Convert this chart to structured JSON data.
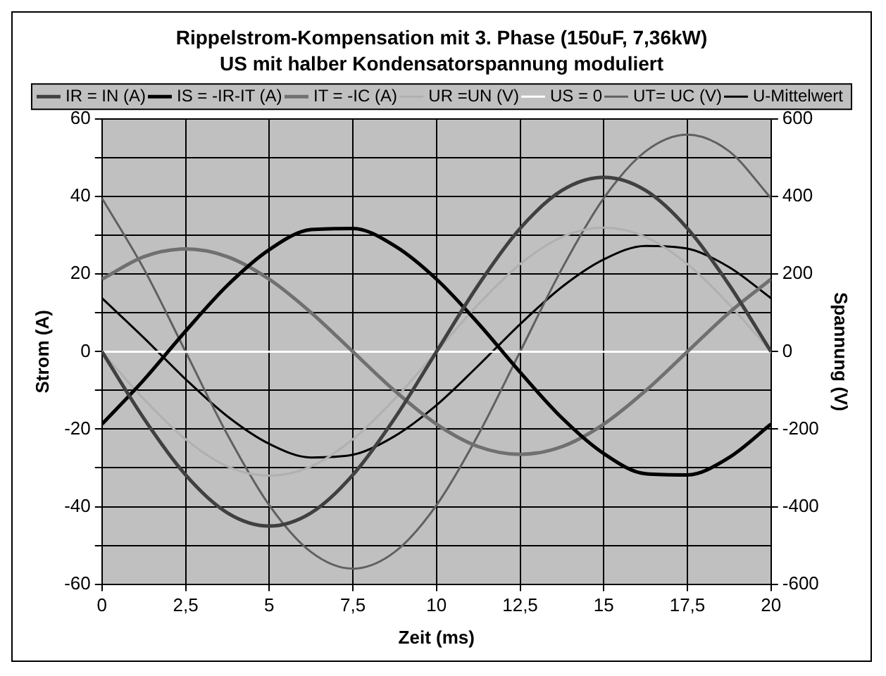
{
  "chart_data": {
    "type": "line",
    "title": "Rippelstrom-Kompensation mit 3. Phase (150uF, 7,36kW)",
    "subtitle": "US mit halber Kondensatorspannung moduliert",
    "xlabel": "Zeit (ms)",
    "ylabel": "Strom (A)",
    "y2label": "Spannung (V)",
    "x": [
      0,
      1.25,
      2.5,
      3.75,
      5,
      6.25,
      7.5,
      8.75,
      10,
      11.25,
      12.5,
      13.75,
      15,
      16.25,
      17.5,
      18.75,
      20
    ],
    "series": [
      {
        "name": "IR = IN (A)",
        "color": "#404040",
        "values": [
          0,
          -17.2,
          -31.8,
          -41.6,
          -45,
          -41.6,
          -31.8,
          -17.2,
          0,
          17.2,
          31.8,
          41.6,
          45,
          41.6,
          31.8,
          17.2,
          0
        ]
      },
      {
        "name": "IS = -IR-IT (A)",
        "color": "#000000",
        "values": [
          -18.7,
          -7.3,
          5.3,
          17.1,
          26.3,
          31.5,
          31.8,
          27.3,
          18.7,
          7.3,
          -5.3,
          -17.1,
          -26.3,
          -31.5,
          -31.8,
          -27.3,
          -18.7
        ]
      },
      {
        "name": "IT = -IC (A)",
        "color": "#707070",
        "values": [
          18.7,
          24.5,
          26.5,
          24.5,
          18.7,
          10.1,
          0,
          -10.1,
          -18.7,
          -24.5,
          -26.5,
          -24.5,
          -18.7,
          -10.1,
          0,
          10.1,
          18.7
        ]
      },
      {
        "name": "UR =UN (V)",
        "color": "#b0b0b0",
        "axis": "y2",
        "values": [
          0,
          -122,
          -226,
          -296,
          -320,
          -296,
          -226,
          -122,
          0,
          122,
          226,
          296,
          320,
          296,
          226,
          122,
          0
        ]
      },
      {
        "name": "US = 0",
        "color": "#ffffff",
        "axis": "y2",
        "values": [
          0,
          0,
          0,
          0,
          0,
          0,
          0,
          0,
          0,
          0,
          0,
          0,
          0,
          0,
          0,
          0,
          0
        ]
      },
      {
        "name": "UT= UC (V)",
        "color": "#606060",
        "axis": "y2",
        "values": [
          396,
          214,
          0,
          -214,
          -396,
          -517,
          -560,
          -517,
          -396,
          -214,
          0,
          214,
          396,
          517,
          560,
          517,
          396
        ]
      },
      {
        "name": "U-Mittelwert",
        "color": "#000000",
        "axis": "y2",
        "values": [
          138,
          36,
          -71,
          -167,
          -238,
          -273,
          -266,
          -218,
          -138,
          -36,
          71,
          167,
          238,
          273,
          266,
          218,
          138
        ]
      }
    ],
    "xlim": [
      0,
      20
    ],
    "xticks": [
      0,
      {
        "value": 2.5,
        "label": "2,5"
      },
      5,
      {
        "value": 7.5,
        "label": "7,5"
      },
      10,
      {
        "value": 12.5,
        "label": "12,5"
      },
      15,
      {
        "value": 17.5,
        "label": "17,5"
      },
      20
    ],
    "ylim": [
      -60,
      60
    ],
    "yticks": [
      -60,
      {
        "value": -50,
        "label": null
      },
      -40,
      {
        "value": -30,
        "label": null
      },
      -20,
      {
        "value": -10,
        "label": null
      },
      0,
      {
        "value": 10,
        "label": null
      },
      20,
      {
        "value": 30,
        "label": null
      },
      40,
      {
        "value": 50,
        "label": null
      },
      60
    ],
    "y2lim": [
      -600,
      600
    ],
    "y2ticks": [
      -600,
      -400,
      -200,
      0,
      200,
      400,
      600
    ],
    "grid": true,
    "legend": "top",
    "marker": "none",
    "line_style": "solid"
  }
}
